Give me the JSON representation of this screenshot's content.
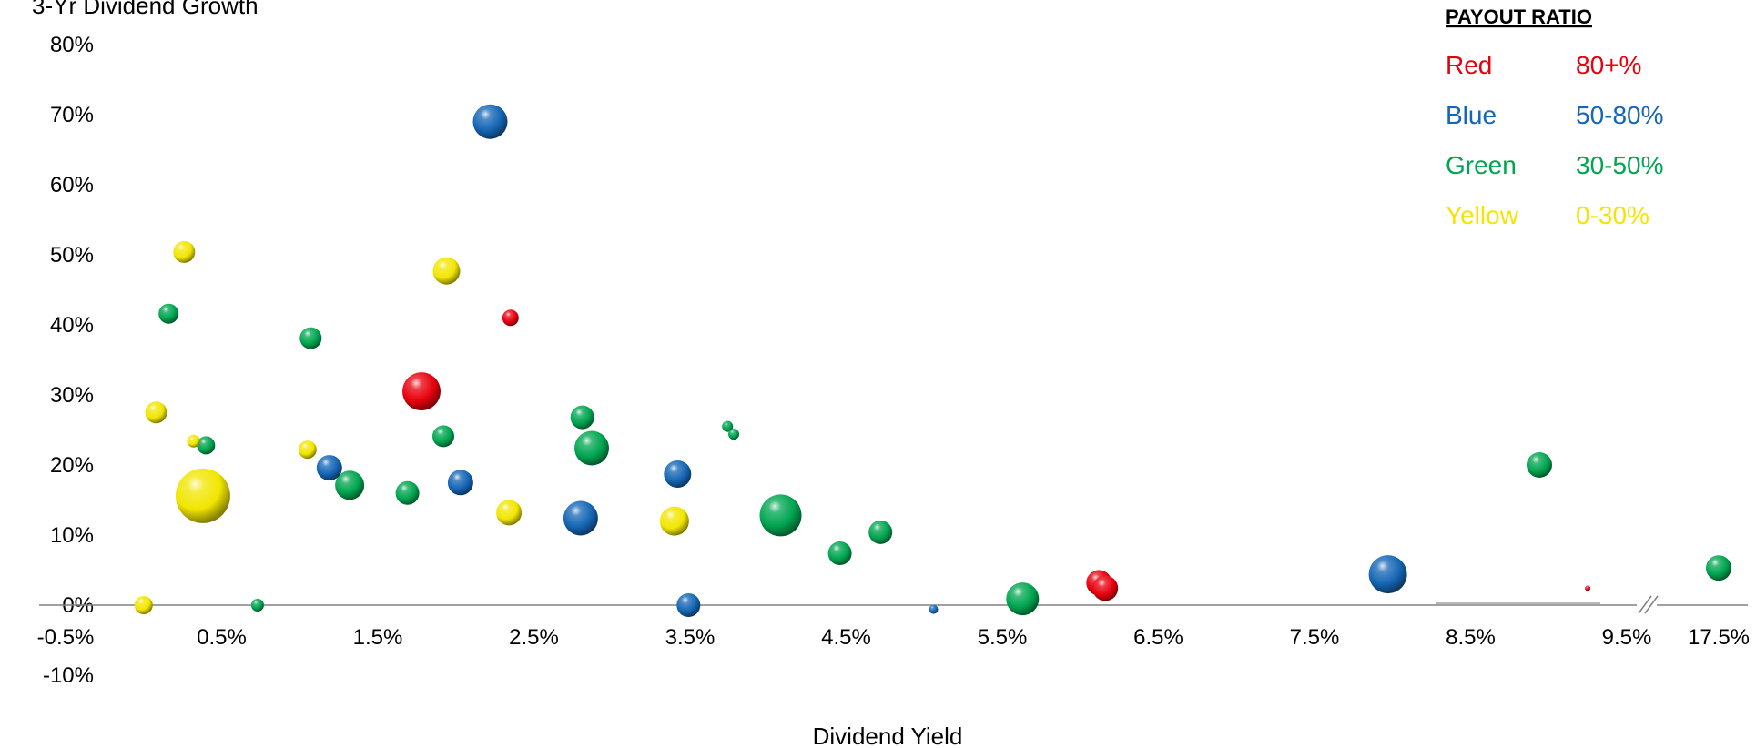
{
  "chart_data": {
    "type": "scatter",
    "subtype": "bubble",
    "ylabel": "3-Yr Dividend Growth",
    "xlabel": "Dividend Yield",
    "x_ticks": [
      "-0.5%",
      "0.5%",
      "1.5%",
      "2.5%",
      "3.5%",
      "4.5%",
      "5.5%",
      "6.5%",
      "7.5%",
      "8.5%",
      "9.5%",
      "17.5%"
    ],
    "y_ticks": [
      "80%",
      "70%",
      "60%",
      "50%",
      "40%",
      "30%",
      "20%",
      "10%",
      "0%",
      "-10%"
    ],
    "xlim": [
      -0.5,
      9.5
    ],
    "ylim": [
      -10,
      80
    ],
    "x_axis_break": "between 9.5% and 17.5%",
    "grid": false,
    "legend": {
      "title": "PAYOUT RATIO",
      "position": "top-right",
      "entries": [
        {
          "color_name": "Red",
          "range": "80+%",
          "color": "#e8000d"
        },
        {
          "color_name": "Blue",
          "range": "50-80%",
          "color": "#1566b5"
        },
        {
          "color_name": "Green",
          "range": "30-50%",
          "color": "#00a550"
        },
        {
          "color_name": "Yellow",
          "range": "0-30%",
          "color": "#f2e600"
        }
      ]
    },
    "series": [
      {
        "name": "Red",
        "color": "#e8000d",
        "points": [
          {
            "x": 1.78,
            "y": 30.5,
            "size": 21
          },
          {
            "x": 2.35,
            "y": 41.0,
            "size": 9
          },
          {
            "x": 6.12,
            "y": 3.2,
            "size": 14
          },
          {
            "x": 6.16,
            "y": 2.4,
            "size": 14
          },
          {
            "x": 9.25,
            "y": 2.4,
            "size": 3
          }
        ]
      },
      {
        "name": "Blue",
        "color": "#1566b5",
        "points": [
          {
            "x": 2.22,
            "y": 69.0,
            "size": 19
          },
          {
            "x": 1.19,
            "y": 19.6,
            "size": 14
          },
          {
            "x": 2.03,
            "y": 17.5,
            "size": 14
          },
          {
            "x": 2.8,
            "y": 12.4,
            "size": 19
          },
          {
            "x": 3.42,
            "y": 18.7,
            "size": 15
          },
          {
            "x": 3.49,
            "y": 0.0,
            "size": 13
          },
          {
            "x": 5.06,
            "y": -0.6,
            "size": 5
          },
          {
            "x": 7.97,
            "y": 4.4,
            "size": 21
          }
        ]
      },
      {
        "name": "Green",
        "color": "#00a550",
        "points": [
          {
            "x": 0.16,
            "y": 41.6,
            "size": 11
          },
          {
            "x": 1.07,
            "y": 38.1,
            "size": 12
          },
          {
            "x": 0.4,
            "y": 22.8,
            "size": 10
          },
          {
            "x": 1.32,
            "y": 17.1,
            "size": 16
          },
          {
            "x": 1.69,
            "y": 16.0,
            "size": 13
          },
          {
            "x": 1.92,
            "y": 24.1,
            "size": 12
          },
          {
            "x": 2.81,
            "y": 26.8,
            "size": 13
          },
          {
            "x": 2.87,
            "y": 22.4,
            "size": 19
          },
          {
            "x": 3.74,
            "y": 25.5,
            "size": 6
          },
          {
            "x": 3.78,
            "y": 24.4,
            "size": 6
          },
          {
            "x": 4.08,
            "y": 12.8,
            "size": 23
          },
          {
            "x": 4.46,
            "y": 7.4,
            "size": 13
          },
          {
            "x": 4.72,
            "y": 10.4,
            "size": 13
          },
          {
            "x": 0.73,
            "y": 0.0,
            "size": 7
          },
          {
            "x": 5.63,
            "y": 0.9,
            "size": 18
          },
          {
            "x": 8.94,
            "y": 20.0,
            "size": 14
          },
          {
            "x": 17.5,
            "y": 5.3,
            "size": 14
          }
        ]
      },
      {
        "name": "Yellow",
        "color": "#f2e600",
        "points": [
          {
            "x": 0.26,
            "y": 50.4,
            "size": 12
          },
          {
            "x": 1.94,
            "y": 47.7,
            "size": 15
          },
          {
            "x": 0.08,
            "y": 27.5,
            "size": 12
          },
          {
            "x": 0.32,
            "y": 23.4,
            "size": 7
          },
          {
            "x": 1.05,
            "y": 22.2,
            "size": 10
          },
          {
            "x": 0.38,
            "y": 15.6,
            "size": 30
          },
          {
            "x": 2.34,
            "y": 13.2,
            "size": 14
          },
          {
            "x": 3.4,
            "y": 12.0,
            "size": 16
          },
          {
            "x": 0.0,
            "y": 0.0,
            "size": 10
          }
        ]
      }
    ]
  }
}
